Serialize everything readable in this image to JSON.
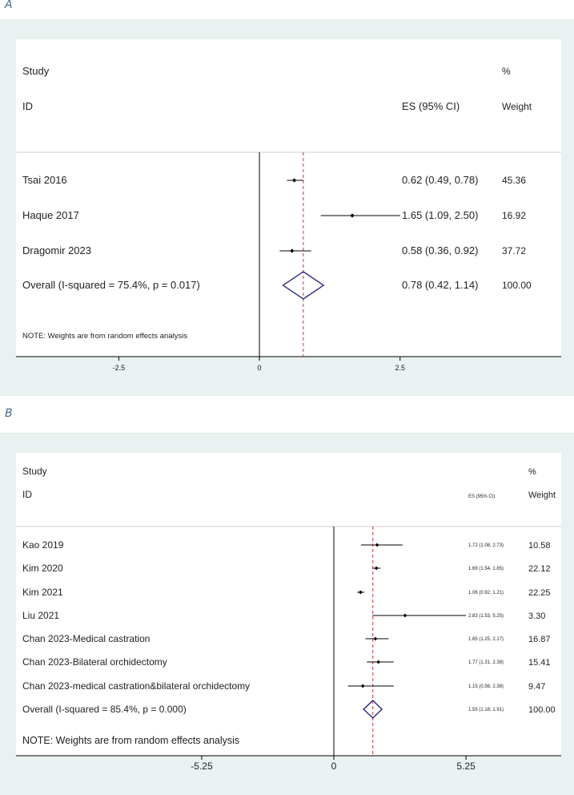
{
  "chart_data": [
    {
      "panel": "A",
      "type": "forest",
      "headers": {
        "study_line1": "Study",
        "study_line2": "ID",
        "es": "ES (95% CI)",
        "weight_line1": "%",
        "weight_line2": "Weight"
      },
      "studies": [
        {
          "name": "Tsai 2016",
          "es": 0.62,
          "lo": 0.49,
          "hi": 0.78,
          "es_text": "0.62 (0.49, 0.78)",
          "weight": "45.36"
        },
        {
          "name": "Haque 2017",
          "es": 1.65,
          "lo": 1.09,
          "hi": 2.5,
          "es_text": "1.65 (1.09, 2.50)",
          "weight": "16.92"
        },
        {
          "name": "Dragomir 2023",
          "es": 0.58,
          "lo": 0.36,
          "hi": 0.92,
          "es_text": "0.58 (0.36, 0.92)",
          "weight": "37.72"
        }
      ],
      "overall": {
        "name": "Overall  (I-squared = 75.4%, p = 0.017)",
        "es": 0.78,
        "lo": 0.42,
        "hi": 1.14,
        "es_text": "0.78 (0.42, 1.14)",
        "weight": "100.00"
      },
      "note": "NOTE: Weights are from random effects analysis",
      "xticks": [
        {
          "v": -2.5,
          "label": "-2.5"
        },
        {
          "v": 0,
          "label": "0"
        },
        {
          "v": 2.5,
          "label": "2.5"
        }
      ],
      "xlim": [
        -4.27,
        5.35
      ],
      "colors": {
        "background": "#e9f1f1",
        "plot": "#ffffff",
        "dashed_line": "#cc3333",
        "diamond": "#1a1a80",
        "marks": "#000000"
      }
    },
    {
      "panel": "B",
      "type": "forest",
      "headers": {
        "study_line1": "Study",
        "study_line2": "ID",
        "es": "ES (95% CI)",
        "weight_line1": "%",
        "weight_line2": "Weight"
      },
      "studies": [
        {
          "name": "Kao 2019",
          "es": 1.72,
          "lo": 1.08,
          "hi": 2.73,
          "es_text": "1.72 (1.08, 2.73)",
          "weight": "10.58"
        },
        {
          "name": "Kim 2020",
          "es": 1.69,
          "lo": 1.54,
          "hi": 1.85,
          "es_text": "1.69 (1.54, 1.85)",
          "weight": "22.12"
        },
        {
          "name": "Kim 2021",
          "es": 1.06,
          "lo": 0.92,
          "hi": 1.21,
          "es_text": "1.06 (0.92, 1.21)",
          "weight": "22.25"
        },
        {
          "name": "Liu 2021",
          "es": 2.83,
          "lo": 1.53,
          "hi": 5.25,
          "es_text": "2.83 (1.53, 5.25)",
          "weight": "3.30"
        },
        {
          "name": "Chan 2023-Medical castration",
          "es": 1.65,
          "lo": 1.25,
          "hi": 2.17,
          "es_text": "1.65 (1.25, 2.17)",
          "weight": "16.87"
        },
        {
          "name": "Chan 2023-Bilateral orchidectomy",
          "es": 1.77,
          "lo": 1.31,
          "hi": 2.38,
          "es_text": "1.77 (1.31, 2.38)",
          "weight": "15.41"
        },
        {
          "name": "Chan 2023-medical castration&bilateral orchidectomy",
          "es": 1.15,
          "lo": 0.56,
          "hi": 2.38,
          "es_text": "1.15 (0.56, 2.38)",
          "weight": "9.47"
        }
      ],
      "overall": {
        "name": "Overall  (I-squared = 85.4%, p = 0.000)",
        "es": 1.55,
        "lo": 1.18,
        "hi": 1.91,
        "es_text": "1.55 (1.18, 1.91)",
        "weight": "100.00"
      },
      "note": "NOTE: Weights are from random effects analysis",
      "xticks": [
        {
          "v": -5.25,
          "label": "-5.25"
        },
        {
          "v": 0,
          "label": "0"
        },
        {
          "v": 5.25,
          "label": "5.25"
        }
      ],
      "xlim": [
        -12.5,
        9.0
      ],
      "colors": {
        "background": "#e9f1f1",
        "plot": "#ffffff",
        "dashed_line": "#cc3333",
        "diamond": "#1a1a80",
        "marks": "#000000"
      }
    }
  ],
  "panel_labels": [
    "A",
    "B"
  ]
}
